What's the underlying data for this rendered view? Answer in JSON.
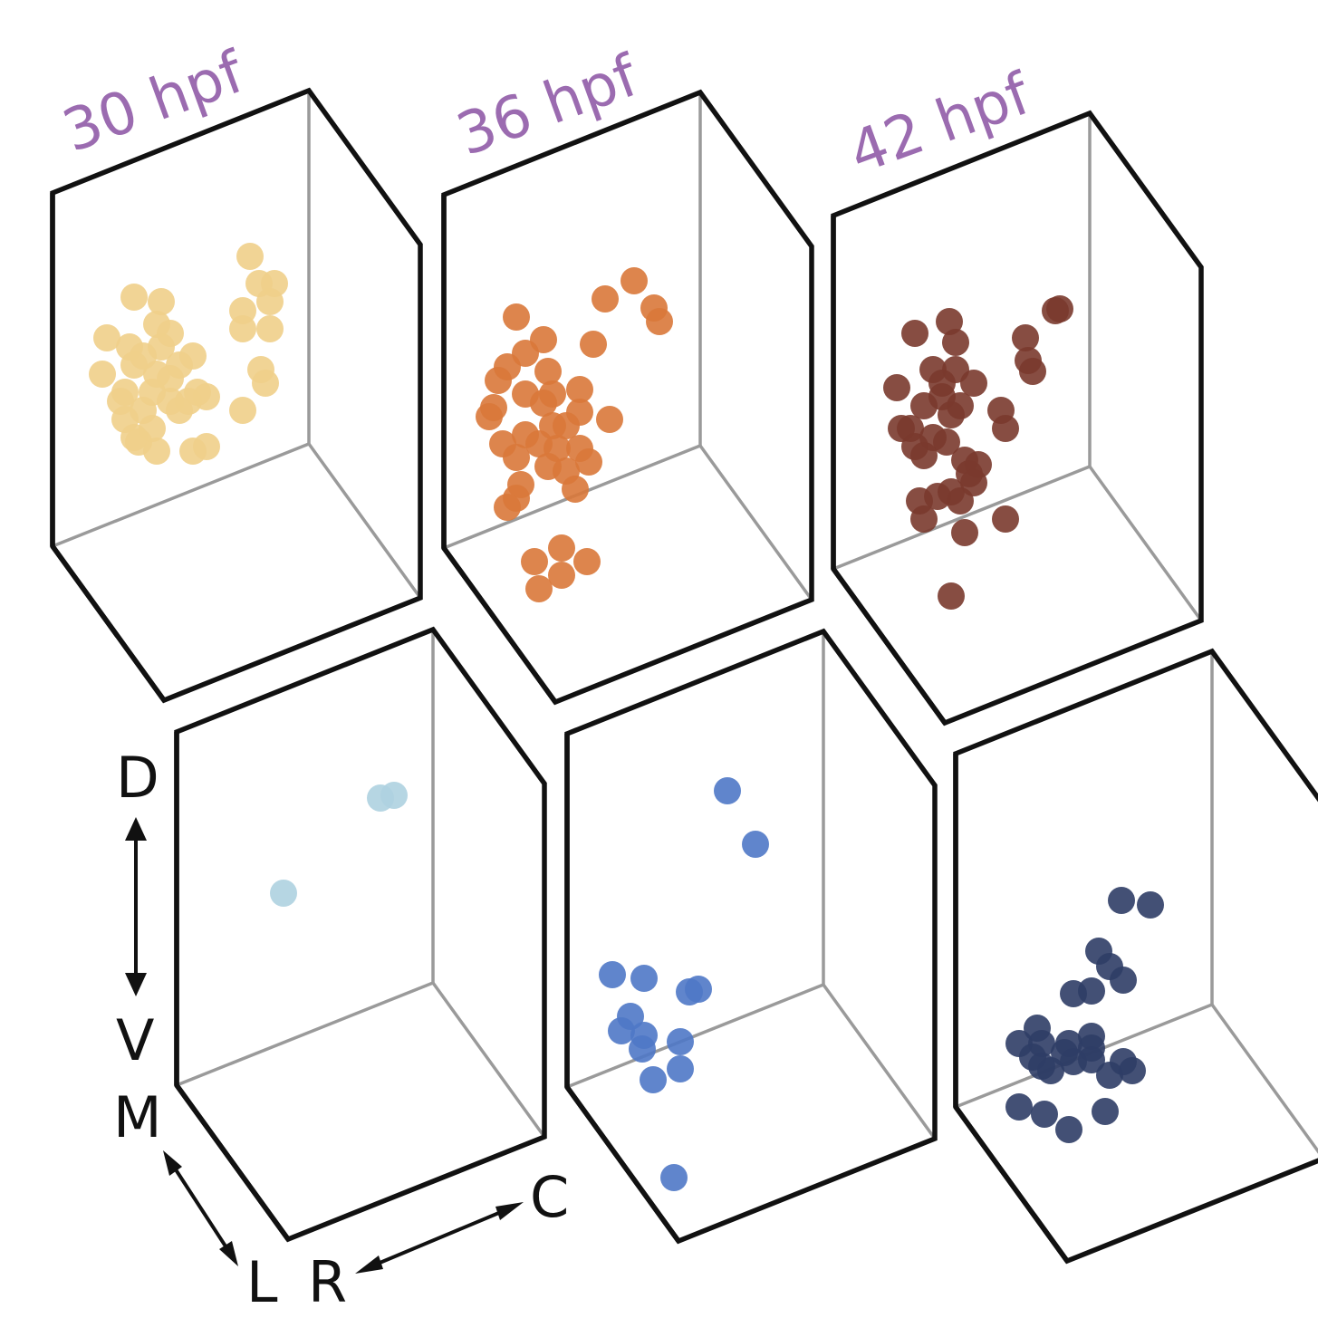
{
  "timepoints": [
    {
      "label": "30 hpf",
      "top_color": "#f0cf8a",
      "bottom_color": "#aed1e0"
    },
    {
      "label": "36 hpf",
      "top_color": "#d9783a",
      "bottom_color": "#4f78c6"
    },
    {
      "label": "42 hpf",
      "top_color": "#7a3a2e",
      "bottom_color": "#2f3d66"
    }
  ],
  "axes": {
    "dorsal": "D",
    "ventral": "V",
    "medial": "M",
    "lateral": "L",
    "rostral": "R",
    "caudal": "C"
  }
}
